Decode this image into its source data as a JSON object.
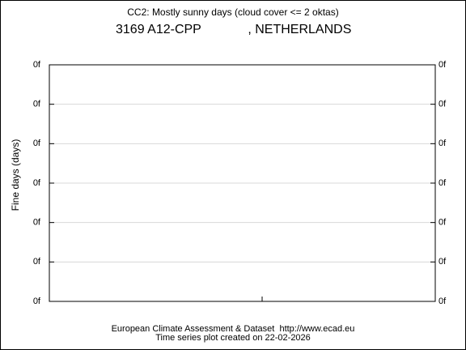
{
  "chart_data": {
    "type": "line",
    "title": "CC2: Mostly sunny days (cloud cover <= 2 oktas)",
    "subtitle": "3169 A12-CPP             , NETHERLANDS",
    "ylabel": "Fine days (days)",
    "ylim": [
      0,
      6
    ],
    "yticks": [
      {
        "value": 0,
        "label": "0f"
      },
      {
        "value": 1,
        "label": "0f"
      },
      {
        "value": 2,
        "label": "0f"
      },
      {
        "value": 3,
        "label": "0f"
      },
      {
        "value": 4,
        "label": "0f"
      },
      {
        "value": 5,
        "label": "0f"
      },
      {
        "value": 6,
        "label": "0f"
      }
    ],
    "grid": true,
    "footer": [
      "European Climate Assessment & Dataset  http://www.ecad.eu",
      "Time series plot created on 22-02-2026"
    ]
  }
}
